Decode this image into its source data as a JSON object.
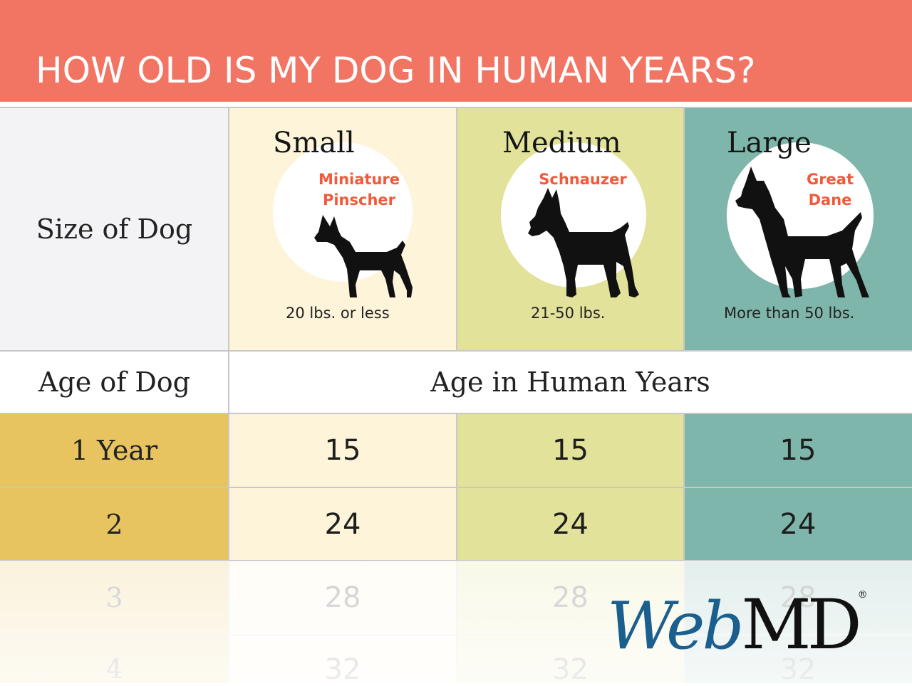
{
  "header": {
    "title": "HOW OLD IS MY DOG IN HUMAN YEARS?"
  },
  "size_row": {
    "label": "Size of Dog"
  },
  "sizes": [
    {
      "name": "Small",
      "breed_line1": "Miniature",
      "breed_line2": "Pinscher",
      "weight": "20 lbs. or less",
      "icon": "miniature-pinscher-silhouette-icon"
    },
    {
      "name": "Medium",
      "breed_line1": "Schnauzer",
      "breed_line2": "",
      "weight": "21-50 lbs.",
      "icon": "schnauzer-silhouette-icon"
    },
    {
      "name": "Large",
      "breed_line1": "Great",
      "breed_line2": "Dane",
      "weight": "More than 50 lbs.",
      "icon": "great-dane-silhouette-icon"
    }
  ],
  "age_header": {
    "left": "Age of Dog",
    "right": "Age in Human Years"
  },
  "rows": [
    {
      "age": "1 Year",
      "small": "15",
      "medium": "15",
      "large": "15"
    },
    {
      "age": "2",
      "small": "24",
      "medium": "24",
      "large": "24"
    },
    {
      "age": "3",
      "small": "28",
      "medium": "28",
      "large": "28"
    },
    {
      "age": "4",
      "small": "32",
      "medium": "32",
      "large": "32"
    }
  ],
  "logo": {
    "web": "Web",
    "md": "MD",
    "registered": "®"
  },
  "colors": {
    "banner": "#f27563",
    "size_label_bg": "#f3f3f5",
    "small_bg": "#fdf4da",
    "medium_bg": "#e2e29a",
    "large_bg": "#7fb6ab",
    "age_col_bg": "#e7c460",
    "breed_text": "#f05a3c"
  }
}
